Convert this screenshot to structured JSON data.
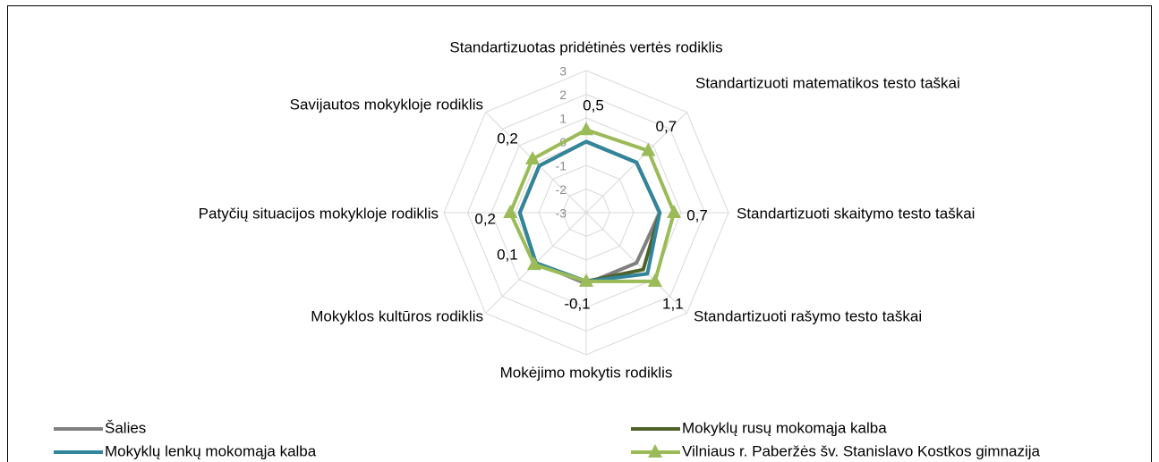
{
  "chart_data": {
    "type": "radar",
    "categories": [
      "Standartizuotas pridėtinės vertės rodiklis",
      "Standartizuoti matematikos testo taškai",
      "Standartizuoti skaitymo testo taškai",
      "Standartizuoti rašymo testo taškai",
      "Mokėjimo mokytis rodiklis",
      "Mokyklos kultūros rodiklis",
      "Patyčių situacijos mokykloje rodiklis",
      "Savijautos mokykloje rodiklis"
    ],
    "ylim": [
      -3,
      3
    ],
    "yticks": [
      -3,
      -2,
      -1,
      0,
      1,
      2,
      3
    ],
    "grid": true,
    "series": [
      {
        "name": "Šalies",
        "color": "#808080",
        "values": [
          0,
          0,
          0.1,
          0,
          0,
          0,
          -0.2,
          -0.2
        ]
      },
      {
        "name": "Mokyklų rusų mokomąja kalba",
        "color": "#4f6228",
        "values": [
          0,
          0,
          0.1,
          0.4,
          -0.1,
          0,
          -0.2,
          -0.2
        ]
      },
      {
        "name": "Mokyklų lenkų mokomąja kalba",
        "color": "#31859c",
        "values": [
          0,
          0,
          0.1,
          0.65,
          -0.1,
          0,
          -0.2,
          -0.2
        ]
      },
      {
        "name": "Vilniaus r. Paberžės šv. Stanislavo Kostkos gimnazija",
        "color": "#9bbb59",
        "marker": "triangle",
        "values": [
          0.5,
          0.7,
          0.7,
          1.1,
          -0.1,
          0.1,
          0.2,
          0.2
        ],
        "value_labels": [
          "0,5",
          "0,7",
          "0,7",
          "1,1",
          "-0,1",
          "0,1",
          "0,2",
          "0,2"
        ]
      }
    ]
  }
}
